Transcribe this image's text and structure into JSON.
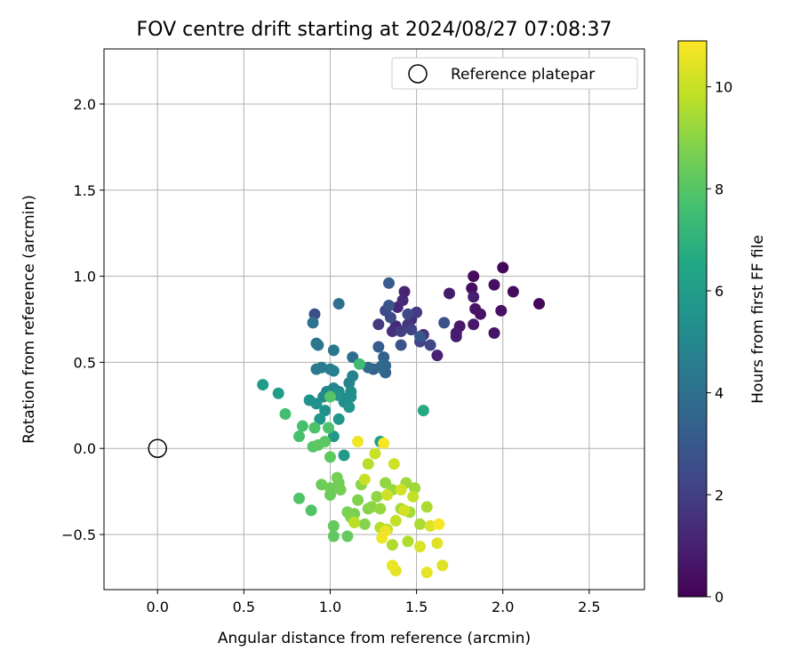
{
  "chart_data": {
    "type": "scatter",
    "title": "FOV centre drift starting at 2024/08/27 07:08:37",
    "xlabel": "Angular distance from reference (arcmin)",
    "ylabel": "Rotation from reference (arcmin)",
    "xlim": [
      -0.31,
      2.82
    ],
    "ylim": [
      -0.82,
      2.32
    ],
    "xticks": [
      0.0,
      0.5,
      1.0,
      1.5,
      2.0,
      2.5
    ],
    "xtick_labels": [
      "0.0",
      "0.5",
      "1.0",
      "1.5",
      "2.0",
      "2.5"
    ],
    "yticks": [
      -0.5,
      0.0,
      0.5,
      1.0,
      1.5,
      2.0
    ],
    "ytick_labels": [
      "−0.5",
      "0.0",
      "0.5",
      "1.0",
      "1.5",
      "2.0"
    ],
    "grid": true,
    "legend": {
      "placement": "upper-right",
      "entries": [
        "Reference platepar"
      ]
    },
    "reference_point": {
      "x": 0.0,
      "y": 0.0,
      "label": "Reference platepar",
      "marker": "open-circle"
    },
    "colorbar": {
      "label": "Hours from first FF file",
      "colormap": "viridis",
      "range": [
        0,
        10.9
      ],
      "ticks": [
        0,
        2,
        4,
        6,
        8,
        10
      ],
      "tick_labels": [
        "0",
        "2",
        "4",
        "6",
        "8",
        "10"
      ]
    },
    "points": [
      {
        "x": 2.0,
        "y": 1.05,
        "h": 0.2
      },
      {
        "x": 2.21,
        "y": 0.84,
        "h": 0.2
      },
      {
        "x": 1.83,
        "y": 1.0,
        "h": 0.3
      },
      {
        "x": 2.06,
        "y": 0.91,
        "h": 0.3
      },
      {
        "x": 1.95,
        "y": 0.95,
        "h": 0.4
      },
      {
        "x": 1.82,
        "y": 0.93,
        "h": 0.4
      },
      {
        "x": 1.99,
        "y": 0.8,
        "h": 0.5
      },
      {
        "x": 1.87,
        "y": 0.78,
        "h": 0.5
      },
      {
        "x": 1.84,
        "y": 0.81,
        "h": 0.6
      },
      {
        "x": 1.95,
        "y": 0.67,
        "h": 0.6
      },
      {
        "x": 1.83,
        "y": 0.72,
        "h": 0.7
      },
      {
        "x": 1.75,
        "y": 0.71,
        "h": 0.7
      },
      {
        "x": 1.73,
        "y": 0.67,
        "h": 0.8
      },
      {
        "x": 1.69,
        "y": 0.9,
        "h": 0.8
      },
      {
        "x": 1.83,
        "y": 0.88,
        "h": 0.9
      },
      {
        "x": 1.73,
        "y": 0.65,
        "h": 0.9
      },
      {
        "x": 1.62,
        "y": 0.54,
        "h": 1.0
      },
      {
        "x": 1.43,
        "y": 0.91,
        "h": 1.1
      },
      {
        "x": 1.39,
        "y": 0.82,
        "h": 1.2
      },
      {
        "x": 1.38,
        "y": 0.71,
        "h": 1.2
      },
      {
        "x": 1.42,
        "y": 0.86,
        "h": 1.3
      },
      {
        "x": 1.47,
        "y": 0.75,
        "h": 1.4
      },
      {
        "x": 1.36,
        "y": 0.68,
        "h": 1.5
      },
      {
        "x": 1.54,
        "y": 0.66,
        "h": 1.6
      },
      {
        "x": 1.45,
        "y": 0.72,
        "h": 1.7
      },
      {
        "x": 1.28,
        "y": 0.72,
        "h": 1.8
      },
      {
        "x": 1.5,
        "y": 0.79,
        "h": 1.9
      },
      {
        "x": 1.41,
        "y": 0.68,
        "h": 2.0
      },
      {
        "x": 1.47,
        "y": 0.69,
        "h": 2.1
      },
      {
        "x": 1.52,
        "y": 0.62,
        "h": 2.2
      },
      {
        "x": 1.58,
        "y": 0.6,
        "h": 2.3
      },
      {
        "x": 1.45,
        "y": 0.78,
        "h": 2.4
      },
      {
        "x": 1.32,
        "y": 0.8,
        "h": 2.4
      },
      {
        "x": 1.35,
        "y": 0.76,
        "h": 2.5
      },
      {
        "x": 0.91,
        "y": 0.78,
        "h": 2.6
      },
      {
        "x": 1.66,
        "y": 0.73,
        "h": 2.7
      },
      {
        "x": 1.41,
        "y": 0.6,
        "h": 2.8
      },
      {
        "x": 1.34,
        "y": 0.83,
        "h": 2.9
      },
      {
        "x": 1.52,
        "y": 0.65,
        "h": 3.0
      },
      {
        "x": 1.34,
        "y": 0.96,
        "h": 3.1
      },
      {
        "x": 1.28,
        "y": 0.59,
        "h": 3.2
      },
      {
        "x": 1.25,
        "y": 0.46,
        "h": 3.3
      },
      {
        "x": 1.31,
        "y": 0.53,
        "h": 3.4
      },
      {
        "x": 1.32,
        "y": 0.44,
        "h": 3.5
      },
      {
        "x": 1.32,
        "y": 0.48,
        "h": 3.6
      },
      {
        "x": 1.3,
        "y": 0.48,
        "h": 3.7
      },
      {
        "x": 1.29,
        "y": 0.47,
        "h": 3.8
      },
      {
        "x": 1.22,
        "y": 0.47,
        "h": 3.8
      },
      {
        "x": 1.13,
        "y": 0.53,
        "h": 3.9
      },
      {
        "x": 1.05,
        "y": 0.84,
        "h": 4.0
      },
      {
        "x": 0.9,
        "y": 0.73,
        "h": 4.1
      },
      {
        "x": 0.92,
        "y": 0.61,
        "h": 4.2
      },
      {
        "x": 0.93,
        "y": 0.6,
        "h": 4.3
      },
      {
        "x": 1.02,
        "y": 0.57,
        "h": 4.3
      },
      {
        "x": 0.92,
        "y": 0.46,
        "h": 4.4
      },
      {
        "x": 0.95,
        "y": 0.47,
        "h": 4.5
      },
      {
        "x": 1.0,
        "y": 0.46,
        "h": 4.6
      },
      {
        "x": 1.02,
        "y": 0.45,
        "h": 4.7
      },
      {
        "x": 1.13,
        "y": 0.42,
        "h": 4.8
      },
      {
        "x": 1.11,
        "y": 0.38,
        "h": 4.9
      },
      {
        "x": 0.98,
        "y": 0.33,
        "h": 5.0
      },
      {
        "x": 1.02,
        "y": 0.35,
        "h": 5.0
      },
      {
        "x": 1.05,
        "y": 0.33,
        "h": 5.1
      },
      {
        "x": 1.09,
        "y": 0.29,
        "h": 5.2
      },
      {
        "x": 0.96,
        "y": 0.3,
        "h": 5.2
      },
      {
        "x": 1.08,
        "y": 0.27,
        "h": 5.3
      },
      {
        "x": 1.12,
        "y": 0.33,
        "h": 5.3
      },
      {
        "x": 1.12,
        "y": 0.3,
        "h": 5.4
      },
      {
        "x": 0.97,
        "y": 0.22,
        "h": 5.4
      },
      {
        "x": 0.88,
        "y": 0.28,
        "h": 5.5
      },
      {
        "x": 0.92,
        "y": 0.26,
        "h": 5.5
      },
      {
        "x": 1.04,
        "y": 0.31,
        "h": 5.6
      },
      {
        "x": 1.11,
        "y": 0.24,
        "h": 5.6
      },
      {
        "x": 0.94,
        "y": 0.17,
        "h": 5.7
      },
      {
        "x": 1.05,
        "y": 0.17,
        "h": 5.7
      },
      {
        "x": 1.02,
        "y": 0.07,
        "h": 5.8
      },
      {
        "x": 1.08,
        "y": -0.04,
        "h": 5.8
      },
      {
        "x": 0.61,
        "y": 0.37,
        "h": 5.9
      },
      {
        "x": 0.7,
        "y": 0.32,
        "h": 6.0
      },
      {
        "x": 1.29,
        "y": 0.04,
        "h": 6.1
      },
      {
        "x": 1.54,
        "y": 0.22,
        "h": 6.6
      },
      {
        "x": 1.17,
        "y": 0.49,
        "h": 7.5
      },
      {
        "x": 0.74,
        "y": 0.2,
        "h": 7.6
      },
      {
        "x": 0.84,
        "y": 0.13,
        "h": 7.7
      },
      {
        "x": 0.82,
        "y": 0.07,
        "h": 7.7
      },
      {
        "x": 0.99,
        "y": 0.12,
        "h": 7.8
      },
      {
        "x": 0.91,
        "y": 0.12,
        "h": 7.8
      },
      {
        "x": 0.82,
        "y": -0.29,
        "h": 7.9
      },
      {
        "x": 0.89,
        "y": -0.36,
        "h": 7.9
      },
      {
        "x": 1.0,
        "y": 0.3,
        "h": 8.0
      },
      {
        "x": 0.9,
        "y": 0.01,
        "h": 8.0
      },
      {
        "x": 0.93,
        "y": 0.02,
        "h": 8.1
      },
      {
        "x": 0.97,
        "y": 0.04,
        "h": 8.1
      },
      {
        "x": 1.0,
        "y": -0.05,
        "h": 8.2
      },
      {
        "x": 1.02,
        "y": -0.51,
        "h": 8.2
      },
      {
        "x": 1.1,
        "y": -0.51,
        "h": 8.3
      },
      {
        "x": 1.02,
        "y": -0.45,
        "h": 8.3
      },
      {
        "x": 0.95,
        "y": -0.21,
        "h": 8.4
      },
      {
        "x": 1.0,
        "y": -0.27,
        "h": 8.4
      },
      {
        "x": 1.0,
        "y": -0.23,
        "h": 8.5
      },
      {
        "x": 1.05,
        "y": -0.2,
        "h": 8.5
      },
      {
        "x": 1.06,
        "y": -0.24,
        "h": 8.6
      },
      {
        "x": 1.04,
        "y": -0.17,
        "h": 8.6
      },
      {
        "x": 1.14,
        "y": -0.38,
        "h": 8.7
      },
      {
        "x": 1.1,
        "y": -0.37,
        "h": 8.7
      },
      {
        "x": 1.16,
        "y": -0.3,
        "h": 8.8
      },
      {
        "x": 1.12,
        "y": -0.4,
        "h": 8.8
      },
      {
        "x": 1.2,
        "y": -0.44,
        "h": 8.9
      },
      {
        "x": 1.22,
        "y": -0.35,
        "h": 8.9
      },
      {
        "x": 1.18,
        "y": -0.21,
        "h": 9.0
      },
      {
        "x": 1.24,
        "y": -0.34,
        "h": 9.0
      },
      {
        "x": 1.27,
        "y": -0.28,
        "h": 9.1
      },
      {
        "x": 1.32,
        "y": -0.2,
        "h": 9.1
      },
      {
        "x": 1.29,
        "y": -0.35,
        "h": 9.2
      },
      {
        "x": 1.36,
        "y": -0.24,
        "h": 9.2
      },
      {
        "x": 1.44,
        "y": -0.2,
        "h": 9.3
      },
      {
        "x": 1.49,
        "y": -0.23,
        "h": 9.3
      },
      {
        "x": 1.41,
        "y": -0.35,
        "h": 9.4
      },
      {
        "x": 1.46,
        "y": -0.37,
        "h": 9.4
      },
      {
        "x": 1.52,
        "y": -0.44,
        "h": 9.5
      },
      {
        "x": 1.56,
        "y": -0.34,
        "h": 9.5
      },
      {
        "x": 1.36,
        "y": -0.56,
        "h": 9.6
      },
      {
        "x": 1.45,
        "y": -0.54,
        "h": 9.6
      },
      {
        "x": 1.29,
        "y": -0.46,
        "h": 9.7
      },
      {
        "x": 1.22,
        "y": -0.09,
        "h": 9.7
      },
      {
        "x": 1.14,
        "y": -0.43,
        "h": 9.8
      },
      {
        "x": 1.33,
        "y": -0.47,
        "h": 9.8
      },
      {
        "x": 1.38,
        "y": -0.42,
        "h": 9.9
      },
      {
        "x": 1.48,
        "y": -0.28,
        "h": 9.9
      },
      {
        "x": 1.26,
        "y": -0.03,
        "h": 10.0
      },
      {
        "x": 1.2,
        "y": -0.18,
        "h": 10.0
      },
      {
        "x": 1.33,
        "y": -0.27,
        "h": 10.1
      },
      {
        "x": 1.37,
        "y": -0.09,
        "h": 10.1
      },
      {
        "x": 1.41,
        "y": -0.24,
        "h": 10.2
      },
      {
        "x": 1.43,
        "y": -0.36,
        "h": 10.2
      },
      {
        "x": 1.52,
        "y": -0.57,
        "h": 10.3
      },
      {
        "x": 1.58,
        "y": -0.45,
        "h": 10.3
      },
      {
        "x": 1.65,
        "y": -0.68,
        "h": 10.4
      },
      {
        "x": 1.62,
        "y": -0.55,
        "h": 10.4
      },
      {
        "x": 1.56,
        "y": -0.72,
        "h": 10.5
      },
      {
        "x": 1.38,
        "y": -0.71,
        "h": 10.5
      },
      {
        "x": 1.36,
        "y": -0.68,
        "h": 10.6
      },
      {
        "x": 1.32,
        "y": -0.48,
        "h": 10.6
      },
      {
        "x": 1.3,
        "y": -0.52,
        "h": 10.7
      },
      {
        "x": 1.16,
        "y": 0.04,
        "h": 10.7
      },
      {
        "x": 1.31,
        "y": 0.03,
        "h": 10.8
      },
      {
        "x": 1.63,
        "y": -0.44,
        "h": 10.8
      }
    ]
  }
}
